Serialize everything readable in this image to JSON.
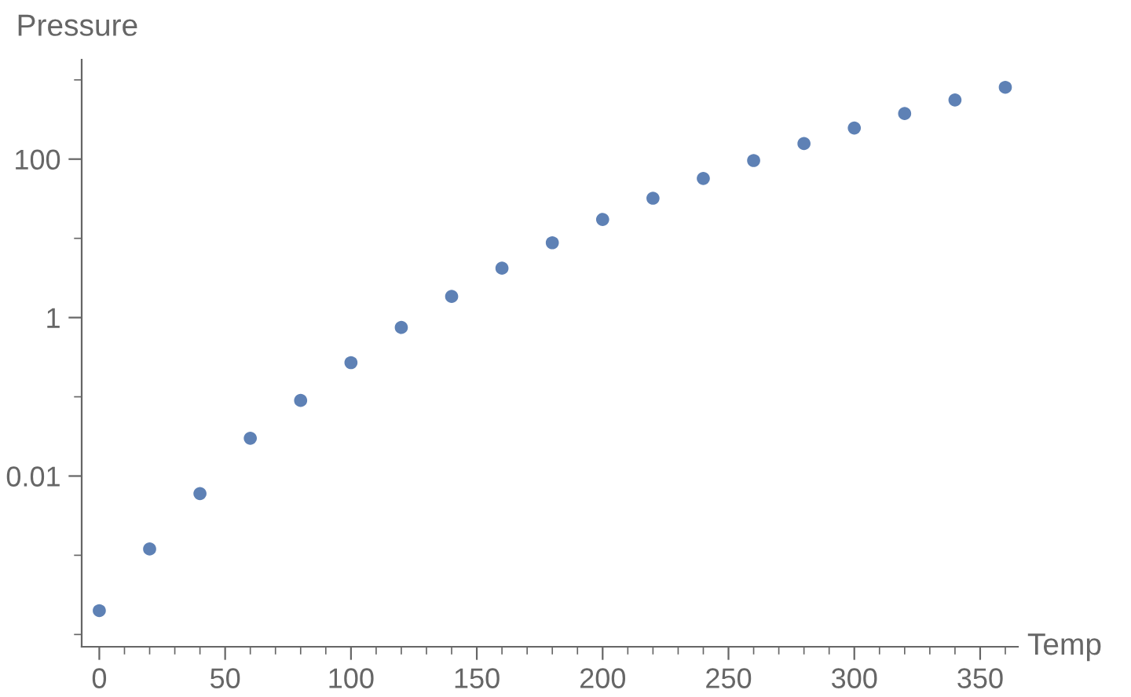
{
  "chart_data": {
    "type": "scatter",
    "xlabel": "Temp",
    "ylabel": "Pressure",
    "log": "y",
    "marker": "circle",
    "grid": false,
    "x": [
      0,
      20,
      40,
      60,
      80,
      100,
      120,
      140,
      160,
      180,
      200,
      220,
      240,
      260,
      280,
      300,
      320,
      340,
      360
    ],
    "series": [
      {
        "color": "#5e81b5",
        "values": [
          0.0002,
          0.0012,
          0.006,
          0.03,
          0.09,
          0.27,
          0.75,
          1.85,
          4.2,
          8.8,
          17.3,
          32.1,
          57,
          96,
          157,
          247,
          376,
          558,
          806
        ]
      }
    ],
    "xlim": [
      -7,
      365
    ],
    "ylim": [
      7e-05,
      1800
    ],
    "xticks": [
      0,
      {
        "value": 10,
        "label": null
      },
      {
        "value": 20,
        "label": null
      },
      {
        "value": 30,
        "label": null
      },
      {
        "value": 40,
        "label": null
      },
      50,
      {
        "value": 60,
        "label": null
      },
      {
        "value": 70,
        "label": null
      },
      {
        "value": 80,
        "label": null
      },
      {
        "value": 90,
        "label": null
      },
      100,
      {
        "value": 110,
        "label": null
      },
      {
        "value": 120,
        "label": null
      },
      {
        "value": 130,
        "label": null
      },
      {
        "value": 140,
        "label": null
      },
      150,
      {
        "value": 160,
        "label": null
      },
      {
        "value": 170,
        "label": null
      },
      {
        "value": 180,
        "label": null
      },
      {
        "value": 190,
        "label": null
      },
      200,
      {
        "value": 210,
        "label": null
      },
      {
        "value": 220,
        "label": null
      },
      {
        "value": 230,
        "label": null
      },
      {
        "value": 240,
        "label": null
      },
      250,
      {
        "value": 260,
        "label": null
      },
      {
        "value": 270,
        "label": null
      },
      {
        "value": 280,
        "label": null
      },
      {
        "value": 290,
        "label": null
      },
      300,
      {
        "value": 310,
        "label": null
      },
      {
        "value": 320,
        "label": null
      },
      {
        "value": 330,
        "label": null
      },
      {
        "value": 340,
        "label": null
      },
      350,
      {
        "value": 360,
        "label": null
      }
    ],
    "yticks": [
      {
        "value": 0.0001,
        "label": null
      },
      {
        "value": 0.001,
        "label": null
      },
      0.01,
      {
        "value": 0.1,
        "label": null
      },
      1,
      {
        "value": 10,
        "label": null
      },
      100,
      {
        "value": 1000,
        "label": null
      }
    ]
  }
}
